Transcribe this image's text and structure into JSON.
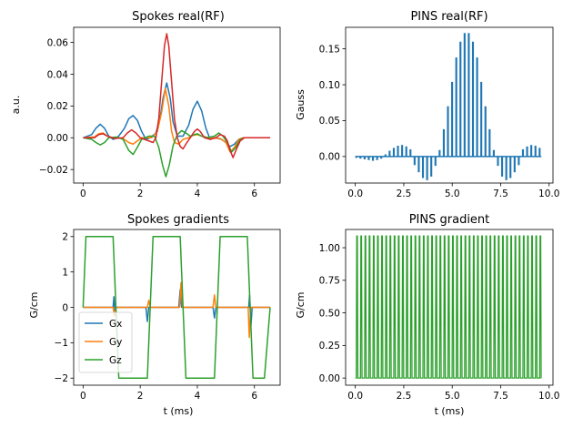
{
  "colors": {
    "c0": "#1f77b4",
    "c1": "#ff7f0e",
    "c2": "#2ca02c",
    "c3": "#d62728"
  },
  "chart_data": [
    {
      "type": "line",
      "title": "Spokes real(RF)",
      "xlabel": "",
      "ylabel": "a.u.",
      "xlim": [
        -0.33,
        6.9
      ],
      "ylim": [
        -0.0285,
        0.0695
      ],
      "xticks": [
        0,
        2,
        4,
        6
      ],
      "xtick_labels": [
        "0",
        "2",
        "4",
        "6"
      ],
      "yticks": [
        -0.02,
        0,
        0.02,
        0.04,
        0.06
      ],
      "ytick_labels": [
        "−0.02",
        "0.00",
        "0.02",
        "0.04",
        "0.06"
      ],
      "series": [
        {
          "name": "",
          "color": "#1f77b4",
          "points": [
            [
              0,
              0
            ],
            [
              0.3,
              0.002
            ],
            [
              0.45,
              0.006
            ],
            [
              0.6,
              0.0085
            ],
            [
              0.75,
              0.006
            ],
            [
              0.9,
              0.001
            ],
            [
              1.05,
              -0.001
            ],
            [
              1.2,
              0
            ],
            [
              1.45,
              0.006
            ],
            [
              1.6,
              0.012
            ],
            [
              1.75,
              0.014
            ],
            [
              1.9,
              0.011
            ],
            [
              2.05,
              0.004
            ],
            [
              2.2,
              -0.001
            ],
            [
              2.35,
              0
            ],
            [
              2.55,
              0.003
            ],
            [
              2.7,
              0.013
            ],
            [
              2.8,
              0.025
            ],
            [
              2.93,
              0.0345
            ],
            [
              3.05,
              0.025
            ],
            [
              3.15,
              0.01
            ],
            [
              3.3,
              0.001
            ],
            [
              3.5,
              0.001
            ],
            [
              3.7,
              0.008
            ],
            [
              3.85,
              0.018
            ],
            [
              4.0,
              0.023
            ],
            [
              4.15,
              0.017
            ],
            [
              4.3,
              0.006
            ],
            [
              4.45,
              -0.001
            ],
            [
              4.6,
              0
            ],
            [
              4.85,
              -0.001
            ],
            [
              5.0,
              -0.003
            ],
            [
              5.15,
              -0.0055
            ],
            [
              5.3,
              -0.004
            ],
            [
              5.45,
              -0.001
            ],
            [
              5.6,
              0
            ],
            [
              6.55,
              0
            ]
          ]
        },
        {
          "name": "",
          "color": "#ff7f0e",
          "points": [
            [
              0,
              0
            ],
            [
              0.4,
              0.0005
            ],
            [
              0.55,
              0.0025
            ],
            [
              0.7,
              0.003
            ],
            [
              0.85,
              0.001
            ],
            [
              1.05,
              0
            ],
            [
              1.4,
              -0.0005
            ],
            [
              1.6,
              -0.003
            ],
            [
              1.75,
              -0.004
            ],
            [
              1.9,
              -0.002
            ],
            [
              2.05,
              0
            ],
            [
              2.4,
              0
            ],
            [
              2.6,
              0.004
            ],
            [
              2.75,
              0.016
            ],
            [
              2.88,
              0.031
            ],
            [
              3.0,
              0.02
            ],
            [
              3.1,
              0.004
            ],
            [
              3.2,
              -0.003
            ],
            [
              3.35,
              -0.004
            ],
            [
              3.5,
              -0.001
            ],
            [
              3.7,
              0
            ],
            [
              3.85,
              0.0015
            ],
            [
              4.0,
              0.002
            ],
            [
              4.15,
              0.001
            ],
            [
              4.4,
              0
            ],
            [
              4.8,
              -0.0005
            ],
            [
              5.0,
              -0.003
            ],
            [
              5.15,
              -0.009
            ],
            [
              5.3,
              -0.006
            ],
            [
              5.45,
              -0.001
            ],
            [
              5.6,
              0
            ],
            [
              6.55,
              0
            ]
          ]
        },
        {
          "name": "",
          "color": "#2ca02c",
          "points": [
            [
              0,
              0
            ],
            [
              0.3,
              -0.001
            ],
            [
              0.45,
              -0.003
            ],
            [
              0.6,
              -0.0045
            ],
            [
              0.75,
              -0.003
            ],
            [
              0.9,
              0
            ],
            [
              1.2,
              0.0005
            ],
            [
              1.4,
              -0.001
            ],
            [
              1.6,
              -0.008
            ],
            [
              1.75,
              -0.0105
            ],
            [
              1.9,
              -0.006
            ],
            [
              2.05,
              -0.001
            ],
            [
              2.3,
              0.001
            ],
            [
              2.5,
              0.001
            ],
            [
              2.65,
              -0.006
            ],
            [
              2.78,
              -0.017
            ],
            [
              2.9,
              -0.0245
            ],
            [
              3.02,
              -0.017
            ],
            [
              3.15,
              -0.005
            ],
            [
              3.3,
              0.002
            ],
            [
              3.45,
              0.0045
            ],
            [
              3.6,
              0.003
            ],
            [
              3.75,
              0.001
            ],
            [
              3.9,
              0.002
            ],
            [
              4.0,
              0.0025
            ],
            [
              4.15,
              0.001
            ],
            [
              4.35,
              0
            ],
            [
              4.6,
              0.001
            ],
            [
              4.75,
              0.003
            ],
            [
              4.9,
              0.001
            ],
            [
              5.05,
              -0.003
            ],
            [
              5.2,
              -0.009
            ],
            [
              5.35,
              -0.006
            ],
            [
              5.5,
              -0.001
            ],
            [
              5.65,
              0
            ],
            [
              6.55,
              0
            ]
          ]
        },
        {
          "name": "",
          "color": "#d62728",
          "points": [
            [
              0,
              0
            ],
            [
              0.4,
              0
            ],
            [
              0.55,
              0.002
            ],
            [
              0.7,
              0.0025
            ],
            [
              0.85,
              0.001
            ],
            [
              1.1,
              -0.0005
            ],
            [
              1.4,
              0
            ],
            [
              1.55,
              0.003
            ],
            [
              1.7,
              0.005
            ],
            [
              1.85,
              0.003
            ],
            [
              2.0,
              0
            ],
            [
              2.3,
              -0.002
            ],
            [
              2.45,
              -0.003
            ],
            [
              2.55,
              0
            ],
            [
              2.65,
              0.012
            ],
            [
              2.75,
              0.035
            ],
            [
              2.85,
              0.058
            ],
            [
              2.93,
              0.0655
            ],
            [
              3.0,
              0.058
            ],
            [
              3.1,
              0.035
            ],
            [
              3.2,
              0.012
            ],
            [
              3.3,
              0
            ],
            [
              3.4,
              -0.0055
            ],
            [
              3.5,
              -0.007
            ],
            [
              3.6,
              -0.004
            ],
            [
              3.75,
              0
            ],
            [
              3.9,
              0.004
            ],
            [
              4.0,
              0.0055
            ],
            [
              4.1,
              0.004
            ],
            [
              4.25,
              0
            ],
            [
              4.45,
              -0.001
            ],
            [
              4.65,
              0
            ],
            [
              4.8,
              0.002
            ],
            [
              4.95,
              0.001
            ],
            [
              5.05,
              -0.002
            ],
            [
              5.15,
              -0.008
            ],
            [
              5.25,
              -0.0125
            ],
            [
              5.35,
              -0.008
            ],
            [
              5.5,
              -0.002
            ],
            [
              5.65,
              0
            ],
            [
              6.55,
              0
            ]
          ]
        }
      ]
    },
    {
      "type": "bar",
      "title": "PINS real(RF)",
      "xlabel": "",
      "ylabel": "Gauss",
      "xlim": [
        -0.5,
        10.2
      ],
      "ylim": [
        -0.037,
        0.18
      ],
      "xticks": [
        0,
        2.5,
        5,
        7.5,
        10
      ],
      "xtick_labels": [
        "0.0",
        "2.5",
        "5.0",
        "7.5",
        "10.0"
      ],
      "yticks": [
        0,
        0.05,
        0.1,
        0.15
      ],
      "ytick_labels": [
        "0.00",
        "0.05",
        "0.10",
        "0.15"
      ],
      "pulse_count": 45,
      "pulse_start": 0,
      "pulse_spacing": 0.215,
      "pulse_width": 0.1,
      "baseline_color": "#1f77b4",
      "baseline_span": [
        0,
        9.6
      ],
      "pulse_values": [
        -0.002,
        -0.003,
        -0.004,
        -0.005,
        -0.006,
        -0.005,
        -0.003,
        0.003,
        0.008,
        0.012,
        0.015,
        0.016,
        0.014,
        0.01,
        -0.012,
        -0.022,
        -0.03,
        -0.033,
        -0.028,
        -0.013,
        0.009,
        0.038,
        0.07,
        0.104,
        0.138,
        0.16,
        0.172,
        0.172,
        0.16,
        0.138,
        0.104,
        0.07,
        0.038,
        0.009,
        -0.013,
        -0.028,
        -0.033,
        -0.03,
        -0.022,
        -0.012,
        0.01,
        0.014,
        0.016,
        0.015,
        0.012
      ]
    },
    {
      "type": "line",
      "title": "Spokes gradients",
      "xlabel": "t (ms)",
      "ylabel": "G/cm",
      "xlim": [
        -0.33,
        6.9
      ],
      "ylim": [
        -2.2,
        2.2
      ],
      "xticks": [
        0,
        2,
        4,
        6
      ],
      "xtick_labels": [
        "0",
        "2",
        "4",
        "6"
      ],
      "yticks": [
        -2,
        -1,
        0,
        1,
        2
      ],
      "ytick_labels": [
        "−2",
        "−1",
        "0",
        "1",
        "2"
      ],
      "legend": {
        "placement": "lower-left",
        "entries": [
          "Gx",
          "Gy",
          "Gz"
        ]
      },
      "series": [
        {
          "name": "Gx",
          "color": "#1f77b4",
          "points": [
            [
              0,
              0
            ],
            [
              1.05,
              0
            ],
            [
              1.08,
              0.3
            ],
            [
              1.12,
              -0.2
            ],
            [
              1.15,
              0
            ],
            [
              2.2,
              0
            ],
            [
              2.25,
              -0.4
            ],
            [
              2.3,
              0
            ],
            [
              3.35,
              0
            ],
            [
              3.4,
              0.5
            ],
            [
              3.45,
              0
            ],
            [
              4.55,
              0
            ],
            [
              4.6,
              -0.3
            ],
            [
              4.65,
              0
            ],
            [
              5.8,
              0
            ],
            [
              5.83,
              0.35
            ],
            [
              5.88,
              -0.5
            ],
            [
              5.92,
              0
            ],
            [
              6.55,
              0
            ]
          ]
        },
        {
          "name": "Gy",
          "color": "#ff7f0e",
          "points": [
            [
              0,
              0
            ],
            [
              1.05,
              0
            ],
            [
              1.1,
              -0.25
            ],
            [
              1.15,
              0
            ],
            [
              2.25,
              0
            ],
            [
              2.3,
              0.2
            ],
            [
              2.35,
              0
            ],
            [
              3.38,
              0
            ],
            [
              3.43,
              0.7
            ],
            [
              3.48,
              0
            ],
            [
              4.55,
              0
            ],
            [
              4.6,
              0.35
            ],
            [
              4.65,
              0
            ],
            [
              5.78,
              0
            ],
            [
              5.82,
              -0.85
            ],
            [
              5.87,
              0
            ],
            [
              6.55,
              0
            ]
          ]
        },
        {
          "name": "Gz",
          "color": "#2ca02c",
          "points": [
            [
              0,
              0
            ],
            [
              0.1,
              2
            ],
            [
              1.05,
              2
            ],
            [
              1.25,
              -2
            ],
            [
              2.25,
              -2
            ],
            [
              2.45,
              2
            ],
            [
              3.4,
              2
            ],
            [
              3.6,
              -2
            ],
            [
              4.6,
              -2
            ],
            [
              4.8,
              2
            ],
            [
              5.75,
              2
            ],
            [
              5.95,
              -2
            ],
            [
              6.35,
              -2
            ],
            [
              6.55,
              0
            ]
          ]
        }
      ]
    },
    {
      "type": "line",
      "title": "PINS gradient",
      "xlabel": "t (ms)",
      "ylabel": "G/cm",
      "xlim": [
        -0.5,
        10.2
      ],
      "ylim": [
        -0.055,
        1.14
      ],
      "xticks": [
        0,
        2.5,
        5,
        7.5,
        10
      ],
      "xtick_labels": [
        "0.0",
        "2.5",
        "5.0",
        "7.5",
        "10.0"
      ],
      "yticks": [
        0,
        0.25,
        0.5,
        0.75,
        1.0
      ],
      "ytick_labels": [
        "0.00",
        "0.25",
        "0.50",
        "0.75",
        "1.00"
      ],
      "color": "#2ca02c",
      "blip_count": 45,
      "blip_start": 0.05,
      "blip_spacing": 0.215,
      "blip_rise": 0.025,
      "blip_flat": 0.03,
      "blip_amplitude": 1.09,
      "t_end": 9.6
    }
  ]
}
